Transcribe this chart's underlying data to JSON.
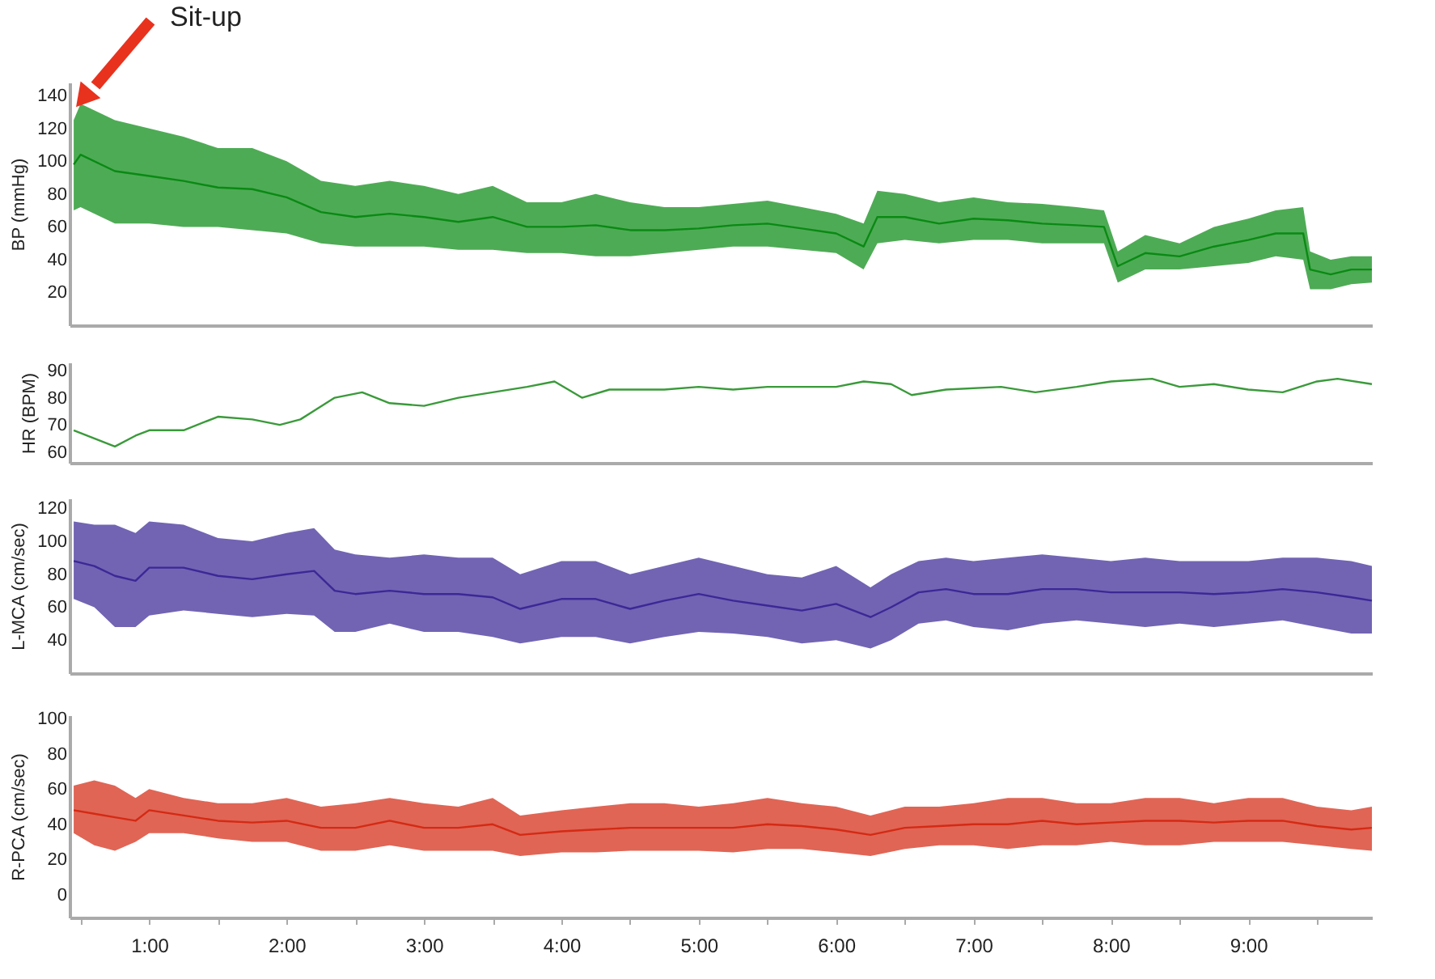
{
  "chart_data": [
    {
      "type": "line",
      "ylabel": "BP (mmHg)",
      "xlim": [
        0.42,
        9.9
      ],
      "ylim": [
        0,
        148
      ],
      "yticks": [
        20,
        40,
        60,
        80,
        100,
        120,
        140
      ],
      "tick_labels": "y",
      "annotations": [
        "Sit-up"
      ],
      "x": [
        0.45,
        0.5,
        0.75,
        1,
        1.25,
        1.5,
        1.75,
        2,
        2.25,
        2.5,
        2.75,
        3,
        3.25,
        3.5,
        3.75,
        4,
        4.25,
        4.5,
        4.75,
        5,
        5.25,
        5.5,
        5.75,
        6,
        6.2,
        6.3,
        6.5,
        6.75,
        7,
        7.25,
        7.5,
        7.75,
        7.95,
        8.05,
        8.25,
        8.5,
        8.75,
        9,
        9.2,
        9.4,
        9.45,
        9.6,
        9.75,
        9.9
      ],
      "series": [
        {
          "color": "#0a8a14",
          "values": [
            98,
            104,
            94,
            91,
            88,
            84,
            83,
            78,
            69,
            66,
            68,
            66,
            63,
            66,
            60,
            60,
            61,
            58,
            58,
            59,
            61,
            62,
            59,
            56,
            48,
            66,
            66,
            62,
            65,
            64,
            62,
            61,
            60,
            36,
            44,
            42,
            48,
            52,
            56,
            56,
            34,
            31,
            34,
            34
          ],
          "upper": [
            125,
            135,
            125,
            120,
            115,
            108,
            108,
            100,
            88,
            85,
            88,
            85,
            80,
            85,
            75,
            75,
            80,
            75,
            72,
            72,
            74,
            76,
            72,
            68,
            62,
            82,
            80,
            75,
            78,
            75,
            74,
            72,
            70,
            45,
            55,
            50,
            60,
            65,
            70,
            72,
            45,
            40,
            42,
            42
          ],
          "lower": [
            70,
            72,
            62,
            62,
            60,
            60,
            58,
            56,
            50,
            48,
            48,
            48,
            46,
            46,
            44,
            44,
            42,
            42,
            44,
            46,
            48,
            48,
            46,
            44,
            34,
            50,
            52,
            50,
            52,
            52,
            50,
            50,
            50,
            26,
            34,
            34,
            36,
            38,
            42,
            40,
            22,
            22,
            25,
            26
          ]
        }
      ]
    },
    {
      "type": "line",
      "ylabel": "HR (BPM)",
      "xlim": [
        0.42,
        9.9
      ],
      "ylim": [
        56,
        93
      ],
      "yticks": [
        60,
        70,
        80,
        90
      ],
      "tick_labels": "y",
      "x": [
        0.45,
        0.6,
        0.75,
        0.9,
        1,
        1.25,
        1.5,
        1.75,
        1.95,
        2.1,
        2.35,
        2.55,
        2.75,
        3,
        3.25,
        3.5,
        3.75,
        3.95,
        4.15,
        4.35,
        4.75,
        5,
        5.25,
        5.5,
        6,
        6.2,
        6.4,
        6.55,
        6.8,
        7.2,
        7.45,
        7.75,
        8,
        8.3,
        8.5,
        8.75,
        9,
        9.25,
        9.5,
        9.65,
        9.9
      ],
      "series": [
        {
          "color": "#3a9a3a",
          "values": [
            68,
            65,
            62,
            66,
            68,
            68,
            73,
            72,
            70,
            72,
            80,
            82,
            78,
            77,
            80,
            82,
            84,
            86,
            80,
            83,
            83,
            84,
            83,
            84,
            84,
            86,
            85,
            81,
            83,
            84,
            82,
            84,
            86,
            87,
            84,
            85,
            83,
            82,
            86,
            87,
            85
          ]
        }
      ]
    },
    {
      "type": "line",
      "ylabel": "L-MCA (cm/sec)",
      "xlim": [
        0.42,
        9.9
      ],
      "ylim": [
        20,
        126
      ],
      "yticks": [
        40,
        60,
        80,
        100,
        120
      ],
      "tick_labels": "y",
      "x": [
        0.45,
        0.6,
        0.75,
        0.9,
        1,
        1.25,
        1.5,
        1.75,
        2,
        2.2,
        2.35,
        2.5,
        2.75,
        3,
        3.25,
        3.5,
        3.7,
        4,
        4.25,
        4.5,
        4.75,
        5,
        5.25,
        5.5,
        5.75,
        6,
        6.25,
        6.4,
        6.6,
        6.8,
        7,
        7.25,
        7.5,
        7.75,
        8,
        8.25,
        8.5,
        8.75,
        9,
        9.25,
        9.5,
        9.75,
        9.9
      ],
      "series": [
        {
          "color": "#3c2896",
          "values": [
            88,
            85,
            79,
            76,
            84,
            84,
            79,
            77,
            80,
            82,
            70,
            68,
            70,
            68,
            68,
            66,
            59,
            65,
            65,
            59,
            64,
            68,
            64,
            61,
            58,
            62,
            54,
            60,
            69,
            71,
            68,
            68,
            71,
            71,
            69,
            69,
            69,
            68,
            69,
            71,
            69,
            66,
            64
          ],
          "upper": [
            112,
            110,
            110,
            105,
            112,
            110,
            102,
            100,
            105,
            108,
            95,
            92,
            90,
            92,
            90,
            90,
            80,
            88,
            88,
            80,
            85,
            90,
            85,
            80,
            78,
            85,
            72,
            80,
            88,
            90,
            88,
            90,
            92,
            90,
            88,
            90,
            88,
            88,
            88,
            90,
            90,
            88,
            85
          ],
          "lower": [
            65,
            60,
            48,
            48,
            55,
            58,
            56,
            54,
            56,
            55,
            45,
            45,
            50,
            45,
            45,
            42,
            38,
            42,
            42,
            38,
            42,
            45,
            44,
            42,
            38,
            40,
            35,
            40,
            50,
            52,
            48,
            46,
            50,
            52,
            50,
            48,
            50,
            48,
            50,
            52,
            48,
            44,
            44
          ]
        }
      ]
    },
    {
      "type": "line",
      "ylabel": "R-PCA (cm/sec)",
      "xlim": [
        0.42,
        9.9
      ],
      "ylim": [
        -13,
        102
      ],
      "yticks": [
        0,
        20,
        40,
        60,
        80,
        100
      ],
      "xticks": [
        {
          "value": 0.5,
          "label": null
        },
        {
          "value": 1,
          "label": "1:00"
        },
        {
          "value": 1.5,
          "label": null
        },
        {
          "value": 2,
          "label": "2:00"
        },
        {
          "value": 2.5,
          "label": null
        },
        {
          "value": 3,
          "label": "3:00"
        },
        {
          "value": 3.5,
          "label": null
        },
        {
          "value": 4,
          "label": "4:00"
        },
        {
          "value": 4.5,
          "label": null
        },
        {
          "value": 5,
          "label": "5:00"
        },
        {
          "value": 5.5,
          "label": null
        },
        {
          "value": 6,
          "label": "6:00"
        },
        {
          "value": 6.5,
          "label": null
        },
        {
          "value": 7,
          "label": "7:00"
        },
        {
          "value": 7.5,
          "label": null
        },
        {
          "value": 8,
          "label": "8:00"
        },
        {
          "value": 8.5,
          "label": null
        },
        {
          "value": 9,
          "label": "9:00"
        },
        {
          "value": 9.5,
          "label": null
        }
      ],
      "x": [
        0.45,
        0.6,
        0.75,
        0.9,
        1,
        1.25,
        1.5,
        1.75,
        2,
        2.25,
        2.5,
        2.75,
        3,
        3.25,
        3.5,
        3.7,
        4,
        4.25,
        4.5,
        4.75,
        5,
        5.25,
        5.5,
        5.75,
        6,
        6.25,
        6.5,
        6.75,
        7,
        7.25,
        7.5,
        7.75,
        8,
        8.25,
        8.5,
        8.75,
        9,
        9.25,
        9.5,
        9.75,
        9.9
      ],
      "series": [
        {
          "color": "#d42a14",
          "values": [
            48,
            46,
            44,
            42,
            48,
            45,
            42,
            41,
            42,
            38,
            38,
            42,
            38,
            38,
            40,
            34,
            36,
            37,
            38,
            38,
            38,
            38,
            40,
            39,
            37,
            34,
            38,
            39,
            40,
            40,
            42,
            40,
            41,
            42,
            42,
            41,
            42,
            42,
            39,
            37,
            38
          ],
          "upper": [
            62,
            65,
            62,
            55,
            60,
            55,
            52,
            52,
            55,
            50,
            52,
            55,
            52,
            50,
            55,
            45,
            48,
            50,
            52,
            52,
            50,
            52,
            55,
            52,
            50,
            45,
            50,
            50,
            52,
            55,
            55,
            52,
            52,
            55,
            55,
            52,
            55,
            55,
            50,
            48,
            50
          ],
          "lower": [
            35,
            28,
            25,
            30,
            35,
            35,
            32,
            30,
            30,
            25,
            25,
            28,
            25,
            25,
            25,
            22,
            24,
            24,
            25,
            25,
            25,
            24,
            26,
            26,
            24,
            22,
            26,
            28,
            28,
            26,
            28,
            28,
            30,
            28,
            28,
            30,
            30,
            30,
            28,
            26,
            25
          ]
        }
      ]
    }
  ]
}
